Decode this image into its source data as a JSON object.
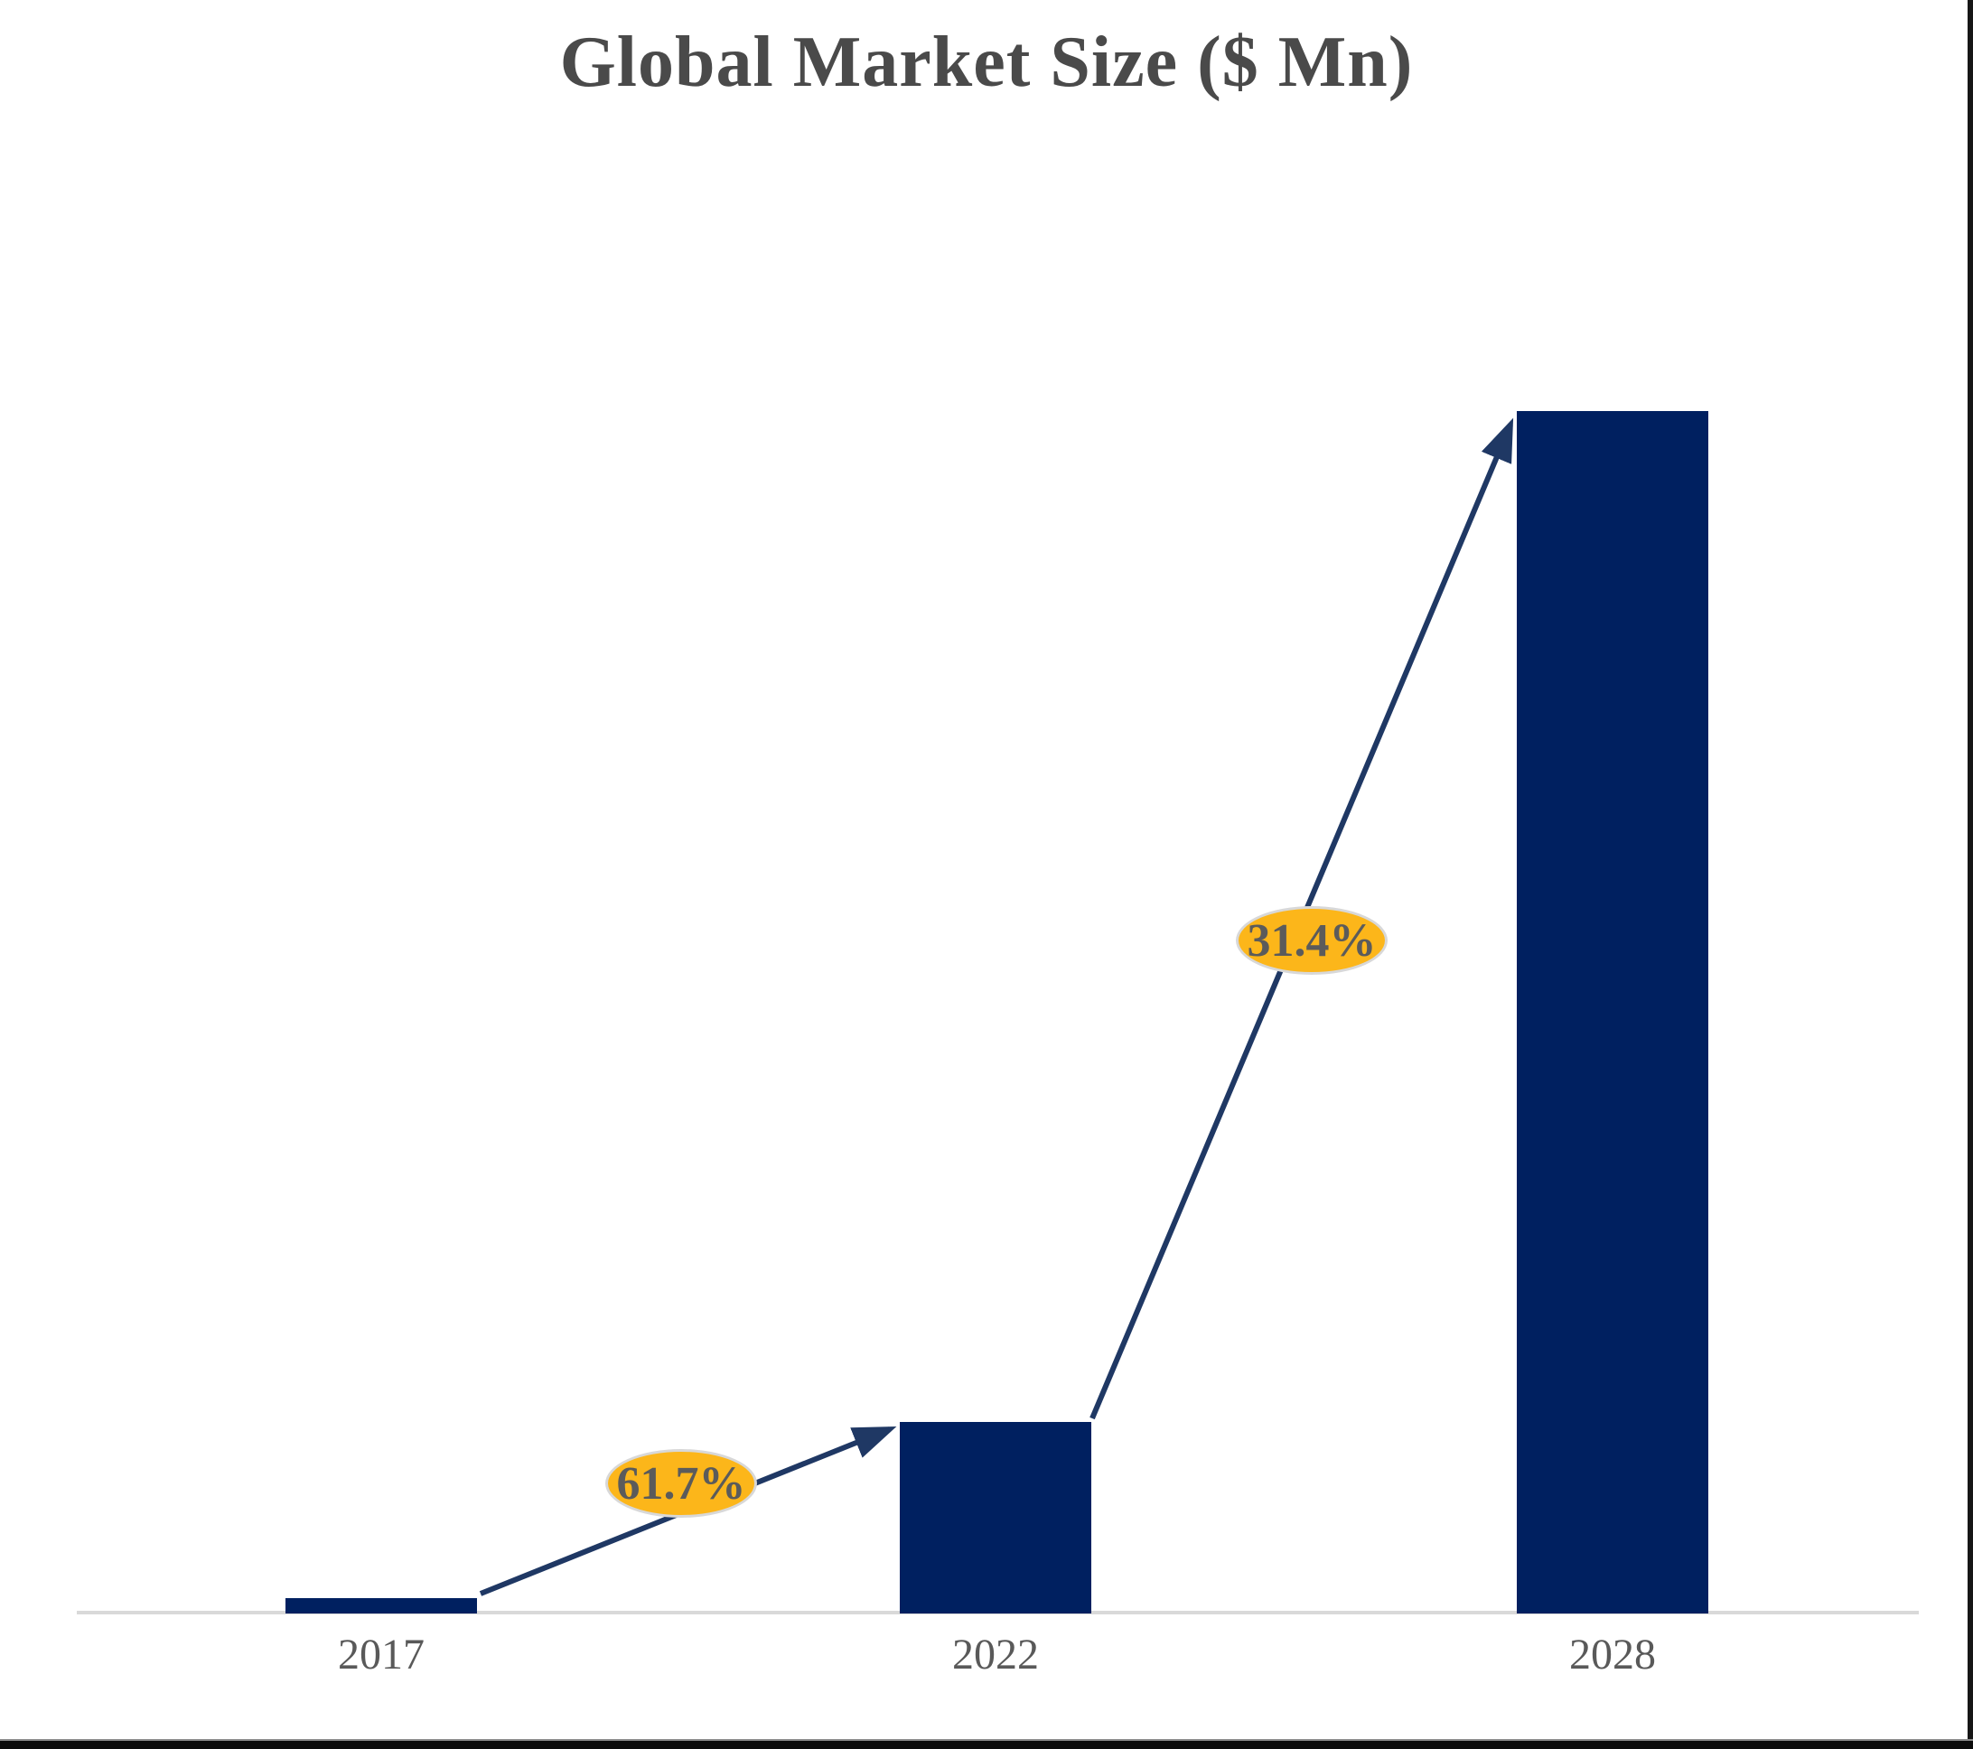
{
  "chart_data": {
    "type": "bar",
    "title": "Global Market Size ($ Mn)",
    "categories": [
      "2017",
      "2022",
      "2028"
    ],
    "values": [
      1.3,
      15.9,
      100
    ],
    "value_axis_note": "no numeric axis shown; values are relative bar heights with 2028 = 100",
    "xlabel": "",
    "ylabel": "",
    "grid": false,
    "legend": false,
    "annotations": [
      {
        "label": "61.7%",
        "type": "growth-arrow",
        "from": "2017",
        "to": "2022"
      },
      {
        "label": "31.4%",
        "type": "growth-arrow",
        "from": "2022",
        "to": "2028"
      }
    ],
    "colors": {
      "bar": "#002060",
      "arrow": "#1f3864",
      "badge_fill": "#fcb61a",
      "badge_border": "#d8d8d8",
      "badge_text": "#5b5b5b",
      "title_text": "#4a4a4a",
      "tick_text": "#595959",
      "axis_line": "#d9d9d9"
    }
  }
}
